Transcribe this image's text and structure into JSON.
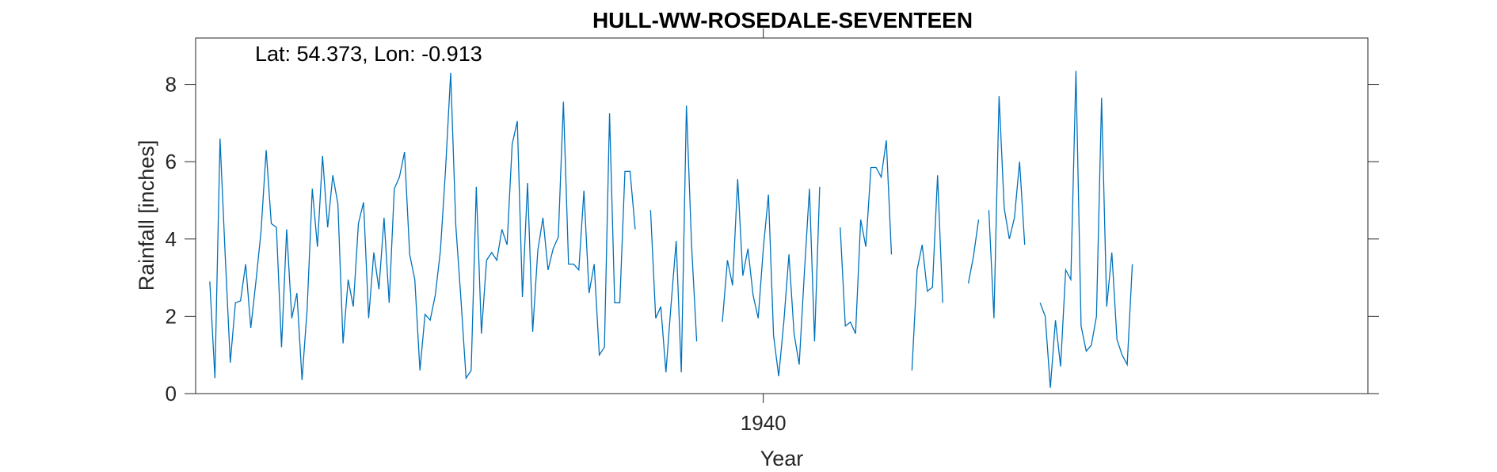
{
  "chart_data": {
    "type": "line",
    "title": "HULL-WW-ROSEDALE-SEVENTEEN",
    "xlabel": "Year",
    "ylabel": "Rainfall [inches]",
    "annotation": "Lat: 54.373, Lon: -0.913",
    "xlim": [
      1930.77,
      1949.83
    ],
    "ylim": [
      0,
      9.2
    ],
    "yticks": [
      0,
      2,
      4,
      6,
      8
    ],
    "xticks": [
      1940
    ],
    "grid": false,
    "legend": "none",
    "color": "#0072BD",
    "start_year": 1931,
    "values": [
      2.9,
      0.4,
      6.6,
      3.6,
      0.8,
      2.35,
      2.4,
      3.35,
      1.7,
      2.9,
      4.2,
      6.3,
      4.4,
      4.3,
      1.2,
      4.25,
      1.95,
      2.6,
      0.35,
      2.2,
      5.3,
      3.8,
      6.15,
      4.3,
      5.65,
      4.9,
      1.3,
      2.95,
      2.25,
      4.4,
      4.95,
      1.95,
      3.65,
      2.7,
      4.55,
      2.35,
      5.3,
      5.6,
      6.25,
      3.6,
      2.95,
      0.6,
      2.05,
      1.9,
      2.55,
      3.7,
      5.8,
      8.3,
      4.35,
      2.45,
      0.4,
      0.6,
      5.35,
      1.55,
      3.45,
      3.65,
      3.45,
      4.25,
      3.85,
      6.45,
      7.05,
      2.5,
      5.45,
      1.6,
      3.7,
      4.55,
      3.2,
      3.75,
      4.05,
      7.55,
      3.35,
      3.35,
      3.2,
      5.25,
      2.6,
      3.35,
      1.0,
      1.2,
      7.25,
      2.35,
      2.35,
      5.75,
      5.75,
      4.25,
      null,
      null,
      4.75,
      1.95,
      2.25,
      0.55,
      2.3,
      3.95,
      0.55,
      7.45,
      3.85,
      1.35,
      null,
      null,
      null,
      null,
      1.85,
      3.45,
      2.8,
      5.55,
      3.05,
      3.75,
      2.55,
      1.95,
      3.75,
      5.15,
      1.5,
      0.45,
      1.85,
      3.6,
      1.55,
      0.75,
      3.1,
      5.3,
      1.35,
      5.35,
      null,
      null,
      null,
      4.3,
      1.75,
      1.85,
      1.55,
      4.5,
      3.8,
      5.85,
      5.85,
      5.6,
      6.55,
      3.6,
      null,
      null,
      null,
      0.6,
      3.2,
      3.85,
      2.65,
      2.75,
      5.65,
      2.35,
      null,
      null,
      null,
      null,
      2.85,
      3.55,
      4.5,
      null,
      4.75,
      1.95,
      7.7,
      4.8,
      4.0,
      4.55,
      6.0,
      3.85,
      null,
      null,
      2.35,
      2.0,
      0.15,
      1.9,
      0.7,
      3.2,
      2.95,
      8.35,
      1.75,
      1.1,
      1.25,
      2.0,
      7.65,
      2.25,
      3.65,
      1.4,
      1.0,
      0.75,
      3.35
    ]
  }
}
